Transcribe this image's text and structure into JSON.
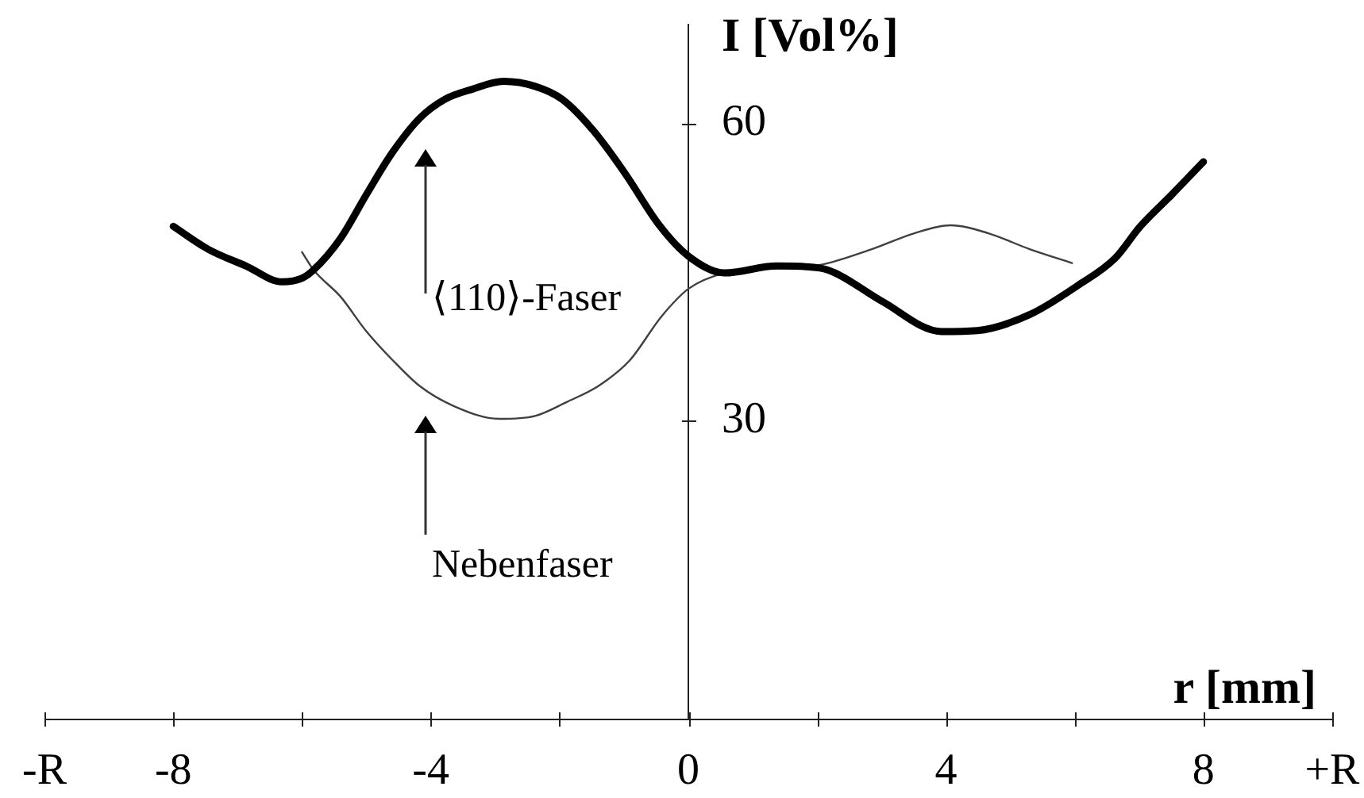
{
  "chart_data": {
    "type": "line",
    "xlabel": "r [mm]",
    "ylabel": "I [Vol%]",
    "xlim": [
      -10,
      10
    ],
    "ylim": [
      0,
      70
    ],
    "xticks": [
      {
        "value": -10,
        "label": "-R"
      },
      -8,
      {
        "value": -6,
        "label": null
      },
      -4,
      {
        "value": -2,
        "label": null
      },
      0,
      {
        "value": 2,
        "label": null
      },
      4,
      {
        "value": 6,
        "label": null
      },
      8,
      {
        "value": 10,
        "label": "+R"
      }
    ],
    "yticks": [
      30,
      60
    ],
    "series": [
      {
        "color": "#000000",
        "x": [
          -8.0,
          -7.46,
          -6.87,
          -6.31,
          -5.99,
          -5.82,
          -5.4,
          -5.0,
          -4.6,
          -4.17,
          -3.78,
          -3.36,
          -2.87,
          -2.38,
          -1.96,
          -1.47,
          -0.98,
          -0.45,
          0.0,
          0.56,
          1.37,
          2.04,
          2.28,
          3.02,
          3.93,
          4.49,
          5.3,
          6.04,
          6.63,
          7.02,
          7.51,
          8.0
        ],
        "values": [
          49.6,
          47.3,
          45.6,
          44.0,
          44.4,
          45.2,
          48.4,
          52.8,
          57.0,
          60.5,
          62.4,
          63.4,
          64.2,
          63.7,
          62.4,
          59.2,
          54.9,
          49.7,
          46.6,
          44.9,
          45.6,
          45.4,
          44.9,
          42.0,
          39.0,
          39.1,
          40.7,
          43.6,
          46.4,
          49.6,
          52.8,
          56.1
        ]
      },
      {
        "color": "#404040",
        "x": [
          -6.0,
          -5.82,
          -5.4,
          -5.01,
          -4.59,
          -4.17,
          -3.61,
          -2.94,
          -2.38,
          -1.89,
          -1.4,
          -0.91,
          -0.42,
          0.0,
          0.56,
          1.2,
          2.04,
          2.85,
          3.51,
          4.07,
          4.66,
          5.3,
          5.96
        ],
        "values": [
          47.0,
          45.2,
          42.5,
          39.1,
          36.1,
          33.5,
          31.4,
          30.2,
          30.5,
          31.9,
          33.5,
          36.1,
          40.5,
          43.3,
          44.9,
          45.3,
          45.7,
          47.3,
          48.9,
          49.7,
          48.9,
          47.3,
          45.9
        ]
      }
    ],
    "annotations": [
      "⟨110⟩-Faser",
      "Nebenfaser"
    ]
  }
}
